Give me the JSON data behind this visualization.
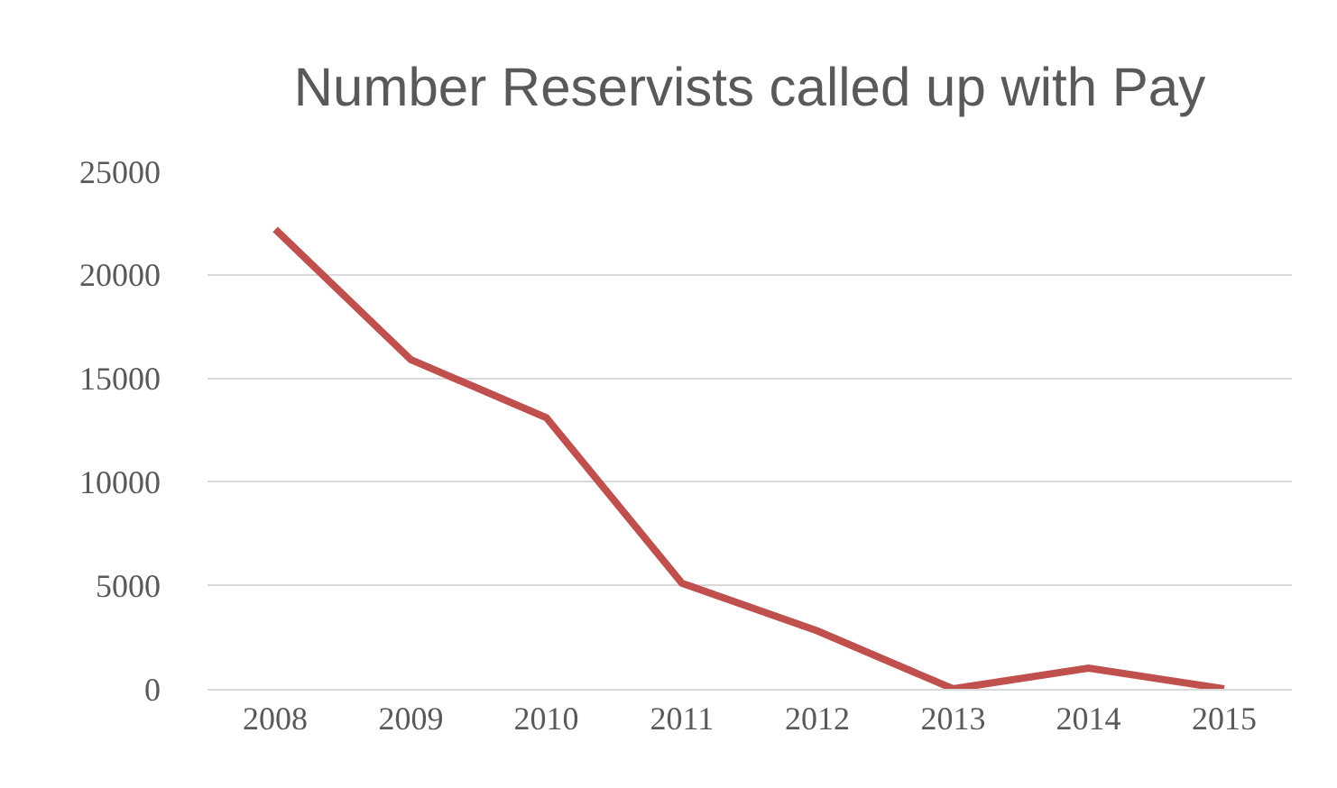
{
  "chart_data": {
    "type": "line",
    "title": "Number Reservists called up with Pay",
    "categories": [
      "2008",
      "2009",
      "2010",
      "2011",
      "2012",
      "2013",
      "2014",
      "2015"
    ],
    "series": [
      {
        "color": "#c0504d",
        "values": [
          22200,
          15900,
          13100,
          5100,
          2800,
          0,
          1000,
          0
        ]
      }
    ],
    "ylim": [
      0,
      25000
    ],
    "yticks": [
      0,
      5000,
      10000,
      15000,
      20000,
      25000
    ],
    "grid": "y",
    "marker": "none",
    "line_style": "solid"
  }
}
